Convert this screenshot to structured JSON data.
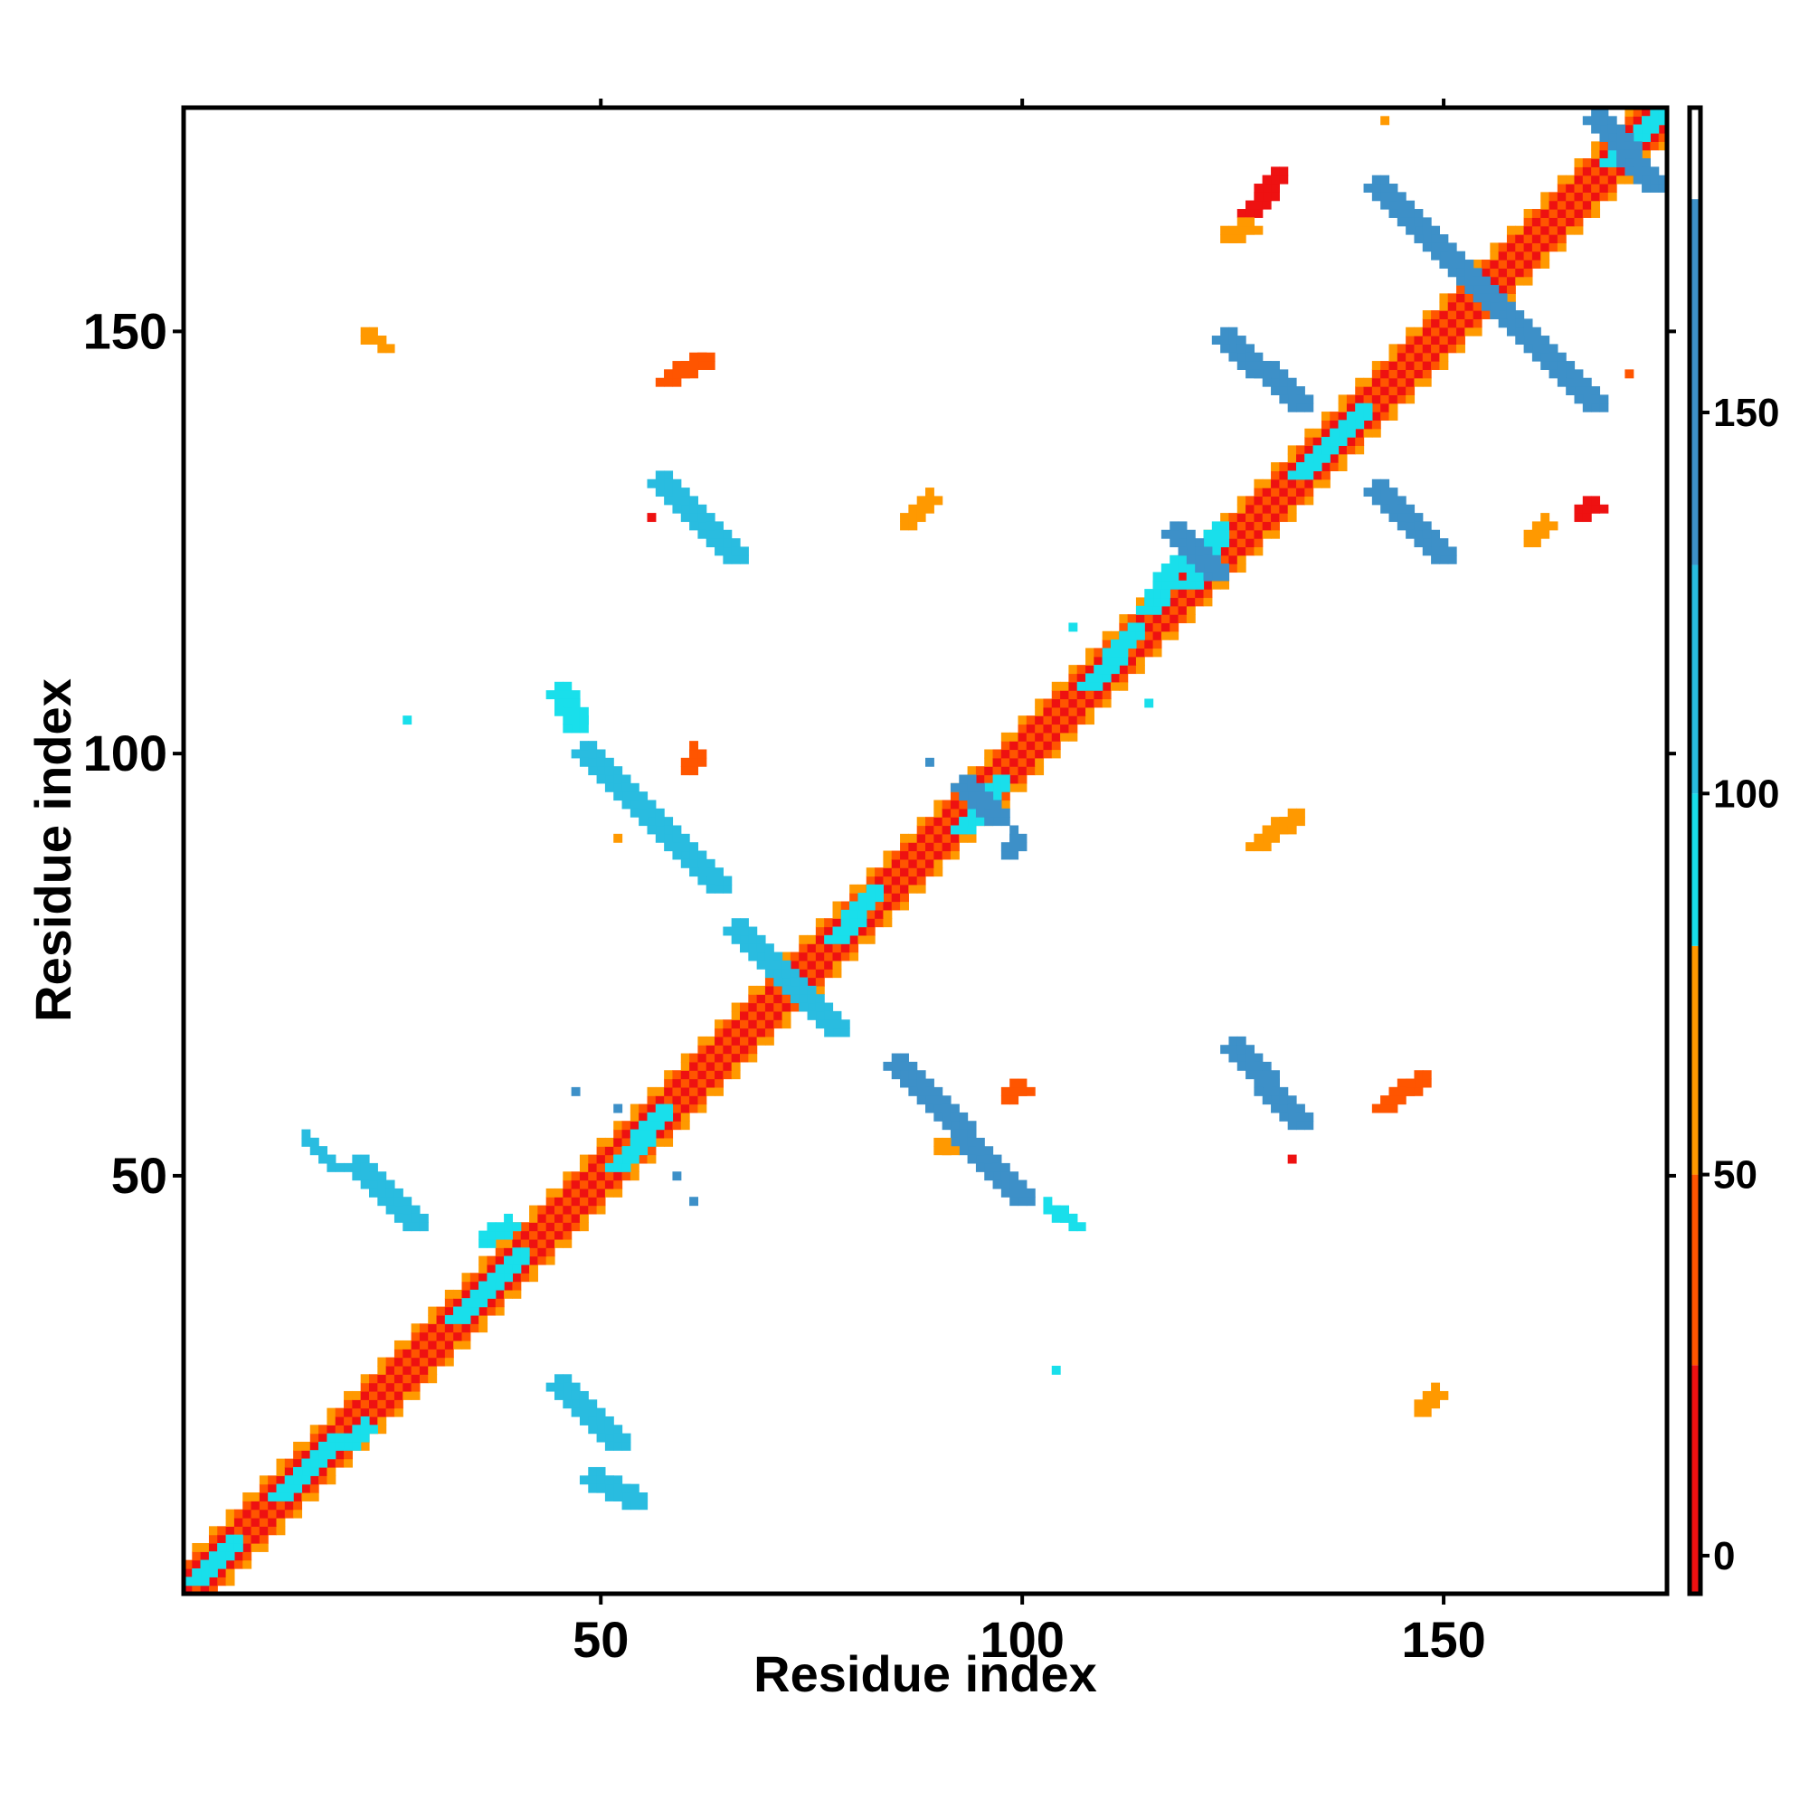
{
  "chart_data": {
    "type": "heatmap",
    "title": "",
    "xlabel": "Residue index",
    "ylabel": "Residue index",
    "xlim": [
      1,
      176
    ],
    "ylim": [
      1,
      176
    ],
    "x_ticks": [
      "50",
      "100",
      "150"
    ],
    "y_ticks": [
      "50",
      "100",
      "150"
    ],
    "colorbar": {
      "ticks": [
        "0",
        "50",
        "100",
        "150"
      ],
      "range": [
        -5,
        190
      ],
      "bands": [
        {
          "from": -5,
          "to": 25,
          "color": "#ee1111"
        },
        {
          "from": 25,
          "to": 50,
          "color": "#ff5500"
        },
        {
          "from": 50,
          "to": 80,
          "color": "#ff9900"
        },
        {
          "from": 80,
          "to": 100,
          "color": "#19dfeb"
        },
        {
          "from": 100,
          "to": 130,
          "color": "#29bce0"
        },
        {
          "from": 130,
          "to": 178,
          "color": "#3d90c8"
        },
        {
          "from": 178,
          "to": 190,
          "color": "#ffffff"
        }
      ]
    },
    "colors": {
      "red": "#ee1111",
      "redorange": "#ff5500",
      "orange": "#ff9900",
      "cyan": "#19dfeb",
      "skyblue": "#29bce0",
      "steelblue": "#3d90c8"
    },
    "diagonal": {
      "from": 1,
      "to": 176
    },
    "contact_segments": [
      {
        "x": [
          2,
          6
        ],
        "y": [
          2,
          6
        ],
        "color": "cyan"
      },
      {
        "x": [
          12,
          18
        ],
        "y": [
          12,
          18
        ],
        "color": "cyan"
      },
      {
        "x": [
          20,
          22
        ],
        "y": [
          18,
          20
        ],
        "color": "cyan"
      },
      {
        "x": [
          33,
          40
        ],
        "y": [
          33,
          40
        ],
        "color": "cyan"
      },
      {
        "x": [
          36,
          39
        ],
        "y": [
          42,
          44
        ],
        "color": "cyan"
      },
      {
        "x": [
          52,
          57
        ],
        "y": [
          51,
          57
        ],
        "color": "cyan"
      },
      {
        "x": [
          78,
          82
        ],
        "y": [
          78,
          83
        ],
        "color": "cyan"
      },
      {
        "x": [
          93,
          97
        ],
        "y": [
          91,
          96
        ],
        "color": "cyan"
      },
      {
        "x": [
          108,
          113
        ],
        "y": [
          108,
          114
        ],
        "color": "cyan"
      },
      {
        "x": [
          115,
          118
        ],
        "y": [
          117,
          122
        ],
        "color": "cyan"
      },
      {
        "x": [
          120,
          123
        ],
        "y": [
          120,
          126
        ],
        "color": "cyan"
      },
      {
        "x": [
          133,
          140
        ],
        "y": [
          133,
          140
        ],
        "color": "cyan"
      },
      {
        "x": [
          170,
          175
        ],
        "y": [
          170,
          175
        ],
        "color": "cyan"
      },
      {
        "x": [
          45,
          52
        ],
        "y": [
          25,
          18
        ],
        "color": "skyblue"
      },
      {
        "x": [
          49,
          54
        ],
        "y": [
          14,
          11
        ],
        "color": "skyblue"
      },
      {
        "x": [
          15,
          18
        ],
        "y": [
          54,
          51
        ],
        "color": "skyblue"
      },
      {
        "x": [
          21,
          28
        ],
        "y": [
          51,
          44
        ],
        "color": "skyblue"
      },
      {
        "x": [
          45,
          47
        ],
        "y": [
          107,
          103
        ],
        "color": "cyan"
      },
      {
        "x": [
          48,
          64
        ],
        "y": [
          100,
          84
        ],
        "color": "skyblue"
      },
      {
        "x": [
          57,
          66
        ],
        "y": [
          132,
          123
        ],
        "color": "skyblue"
      },
      {
        "x": [
          66,
          78
        ],
        "y": [
          79,
          67
        ],
        "color": "skyblue"
      },
      {
        "x": [
          85,
          100
        ],
        "y": [
          63,
          47
        ],
        "color": "steelblue"
      },
      {
        "x": [
          103,
          106
        ],
        "y": [
          46,
          44
        ],
        "color": "cyan"
      },
      {
        "x": [
          93,
          97
        ],
        "y": [
          96,
          92
        ],
        "color": "steelblue"
      },
      {
        "x": [
          125,
          133
        ],
        "y": [
          65,
          56
        ],
        "color": "steelblue"
      },
      {
        "x": [
          124,
          133
        ],
        "y": [
          149,
          141
        ],
        "color": "steelblue"
      },
      {
        "x": [
          118,
          123
        ],
        "y": [
          126,
          121
        ],
        "color": "steelblue"
      },
      {
        "x": [
          142,
          150
        ],
        "y": [
          131,
          123
        ],
        "color": "steelblue"
      },
      {
        "x": [
          142,
          168
        ],
        "y": [
          167,
          141
        ],
        "color": "steelblue"
      },
      {
        "x": [
          168,
          175
        ],
        "y": [
          175,
          167
        ],
        "color": "steelblue"
      },
      {
        "x": [
          22,
          24
        ],
        "y": [
          149,
          148
        ],
        "color": "orange"
      },
      {
        "x": [
          58,
          62
        ],
        "y": [
          144,
          146
        ],
        "color": "redorange"
      },
      {
        "x": [
          86,
          89
        ],
        "y": [
          127,
          130
        ],
        "color": "orange"
      },
      {
        "x": [
          127,
          130
        ],
        "y": [
          164,
          168
        ],
        "color": "red"
      },
      {
        "x": [
          124,
          127
        ],
        "y": [
          161,
          162
        ],
        "color": "orange"
      },
      {
        "x": [
          143,
          143
        ],
        "y": [
          175,
          175
        ],
        "color": "orange"
      },
      {
        "x": [
          160,
          162
        ],
        "y": [
          125,
          127
        ],
        "color": "orange"
      },
      {
        "x": [
          166,
          168
        ],
        "y": [
          128,
          129
        ],
        "color": "red"
      },
      {
        "x": [
          172,
          172
        ],
        "y": [
          145,
          145
        ],
        "color": "redorange"
      },
      {
        "x": [
          60,
          61
        ],
        "y": [
          98,
          100
        ],
        "color": "redorange"
      },
      {
        "x": [
          128,
          132
        ],
        "y": [
          89,
          92
        ],
        "color": "orange"
      },
      {
        "x": [
          98,
          100
        ],
        "y": [
          59,
          60
        ],
        "color": "redorange"
      },
      {
        "x": [
          143,
          147
        ],
        "y": [
          58,
          61
        ],
        "color": "redorange"
      },
      {
        "x": [
          147,
          149
        ],
        "y": [
          22,
          24
        ],
        "color": "orange"
      },
      {
        "x": [
          104,
          104
        ],
        "y": [
          27,
          27
        ],
        "color": "cyan"
      },
      {
        "x": [
          27,
          27
        ],
        "y": [
          104,
          104
        ],
        "color": "cyan"
      },
      {
        "x": [
          90,
          91
        ],
        "y": [
          53,
          53
        ],
        "color": "orange"
      },
      {
        "x": [
          52,
          52
        ],
        "y": [
          90,
          90
        ],
        "color": "orange"
      },
      {
        "x": [
          56,
          56
        ],
        "y": [
          128,
          128
        ],
        "color": "red"
      },
      {
        "x": [
          132,
          132
        ],
        "y": [
          52,
          52
        ],
        "color": "red"
      },
      {
        "x": [
          47,
          47
        ],
        "y": [
          60,
          60
        ],
        "color": "steelblue"
      },
      {
        "x": [
          59,
          59
        ],
        "y": [
          50,
          50
        ],
        "color": "steelblue"
      },
      {
        "x": [
          61,
          61
        ],
        "y": [
          47,
          47
        ],
        "color": "steelblue"
      },
      {
        "x": [
          52,
          52
        ],
        "y": [
          58,
          58
        ],
        "color": "steelblue"
      },
      {
        "x": [
          89,
          89
        ],
        "y": [
          99,
          99
        ],
        "color": "steelblue"
      },
      {
        "x": [
          98,
          99
        ],
        "y": [
          88,
          90
        ],
        "color": "steelblue"
      },
      {
        "x": [
          115,
          115
        ],
        "y": [
          106,
          106
        ],
        "color": "cyan"
      },
      {
        "x": [
          106,
          106
        ],
        "y": [
          115,
          115
        ],
        "color": "cyan"
      }
    ]
  }
}
